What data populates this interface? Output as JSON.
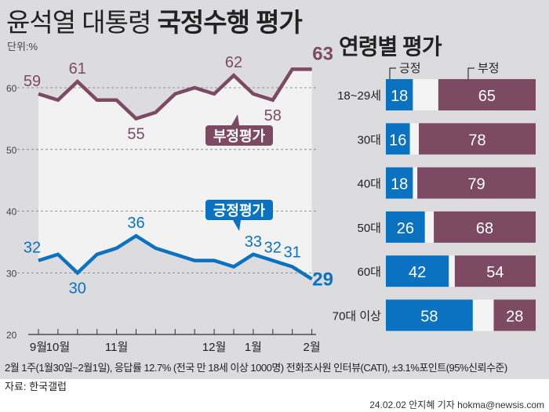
{
  "header": {
    "title_light": "윤석열 대통령",
    "title_bold": "국정수행 평가",
    "unit": "단위:%"
  },
  "chart_data": [
    {
      "type": "line",
      "ylim": [
        20,
        65
      ],
      "yticks": [
        20,
        30,
        40,
        50,
        60
      ],
      "grid": true,
      "x_labels": [
        {
          "index": 0,
          "label": "9월"
        },
        {
          "index": 1,
          "label": "10월"
        },
        {
          "index": 4,
          "label": "11월"
        },
        {
          "index": 9,
          "label": "12월"
        },
        {
          "index": 11,
          "label": "1월"
        },
        {
          "index": 14,
          "label": "2월"
        }
      ],
      "series": [
        {
          "name": "부정평가",
          "color": "#7d4a63",
          "values": [
            59,
            58,
            61,
            58,
            58,
            55,
            56,
            59,
            60,
            59,
            62,
            59,
            58,
            63,
            63
          ],
          "labeled": [
            0,
            2,
            5,
            10,
            12,
            14
          ]
        },
        {
          "name": "긍정평가",
          "color": "#0a72c0",
          "values": [
            32,
            33,
            30,
            33,
            34,
            36,
            34,
            33,
            32,
            32,
            31,
            33,
            32,
            31,
            29
          ],
          "labeled": [
            0,
            2,
            5,
            11,
            12,
            13,
            14
          ]
        }
      ]
    },
    {
      "type": "bar",
      "title": "연령별 평가",
      "legend": [
        "긍정",
        "부정"
      ],
      "colors": {
        "positive": "#0a72c0",
        "negative": "#7d4a63"
      },
      "categories": [
        "18~29세",
        "30대",
        "40대",
        "50대",
        "60대",
        "70대 이상"
      ],
      "series": [
        {
          "name": "긍정",
          "values": [
            18,
            16,
            18,
            26,
            42,
            58
          ]
        },
        {
          "name": "부정",
          "values": [
            65,
            78,
            79,
            68,
            54,
            28
          ]
        }
      ]
    }
  ],
  "footer": {
    "note": "2월 1주(1월30일~2월1일), 응답률 12.7% (전국 만 18세 이상 1000명) 전화조사원 인터뷰(CATI), ±3.1%포인트(95%신뢰수준)",
    "source": "자료: 한국갤럽",
    "credit": "24.02.02 안지혜 기자 hokma@newsis.com",
    "logo": "NEWSIS"
  }
}
